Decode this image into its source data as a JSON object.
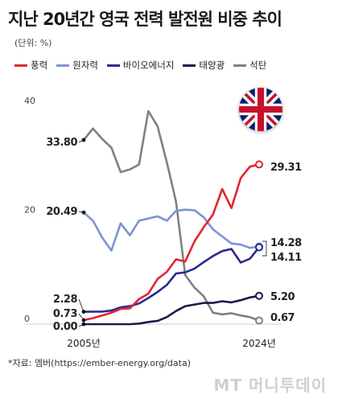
{
  "title": "지난 20년간 영국 전력 발전원 비중 추이",
  "unit_label": "(단위: %)",
  "source": "*자료: 엠버(https://ember-energy.org/data)",
  "watermark": "MT 머니투데이",
  "flag_icon": "uk-flag-icon",
  "chart_data": {
    "type": "line",
    "x": [
      2005,
      2006,
      2007,
      2008,
      2009,
      2010,
      2011,
      2012,
      2013,
      2014,
      2015,
      2016,
      2017,
      2018,
      2019,
      2020,
      2021,
      2022,
      2023,
      2024
    ],
    "ylim": [
      0,
      40
    ],
    "yticks": [
      0,
      20,
      40
    ],
    "xtick_labels": [
      "2005년",
      "2024년"
    ],
    "grid": false,
    "legend_position": "top",
    "series": [
      {
        "name": "풍력",
        "color": "#e32431",
        "values": [
          0.73,
          1.1,
          1.6,
          2.1,
          2.8,
          2.9,
          4.6,
          5.6,
          8.3,
          9.6,
          11.9,
          11.5,
          15.2,
          17.8,
          20.1,
          24.8,
          21.3,
          26.8,
          28.9,
          29.31
        ],
        "start_label": "0.73",
        "end_label": "29.31"
      },
      {
        "name": "원자력",
        "color": "#7b93d6",
        "values": [
          20.49,
          19.0,
          15.9,
          13.5,
          18.5,
          16.3,
          19.0,
          19.4,
          19.8,
          19.0,
          20.8,
          21.0,
          20.9,
          19.6,
          17.4,
          16.1,
          14.8,
          14.6,
          14.0,
          14.28
        ],
        "start_label": "20.49",
        "end_label": "14.28"
      },
      {
        "name": "바이오에너지",
        "color": "#2b2a8f",
        "values": [
          2.28,
          2.3,
          2.3,
          2.5,
          3.1,
          3.3,
          3.8,
          4.8,
          5.9,
          7.2,
          9.3,
          9.5,
          10.2,
          11.4,
          12.5,
          13.4,
          13.8,
          11.3,
          12.0,
          14.11
        ],
        "start_label": "2.28",
        "end_label": "14.11"
      },
      {
        "name": "태양광",
        "color": "#1b1a4a",
        "values": [
          0.0,
          0.0,
          0.0,
          0.0,
          0.0,
          0.0,
          0.1,
          0.4,
          0.6,
          1.3,
          2.4,
          3.3,
          3.6,
          3.9,
          3.9,
          4.2,
          4.0,
          4.4,
          4.9,
          5.2
        ],
        "start_label": "0.00",
        "end_label": "5.20"
      },
      {
        "name": "석탄",
        "color": "#808080",
        "values": [
          33.8,
          35.9,
          34.0,
          32.4,
          27.9,
          28.4,
          29.3,
          39.1,
          36.3,
          29.7,
          22.5,
          9.0,
          6.7,
          5.1,
          2.1,
          1.8,
          2.0,
          1.6,
          1.3,
          0.67
        ],
        "start_label": "33.80",
        "end_label": "0.67"
      }
    ]
  }
}
